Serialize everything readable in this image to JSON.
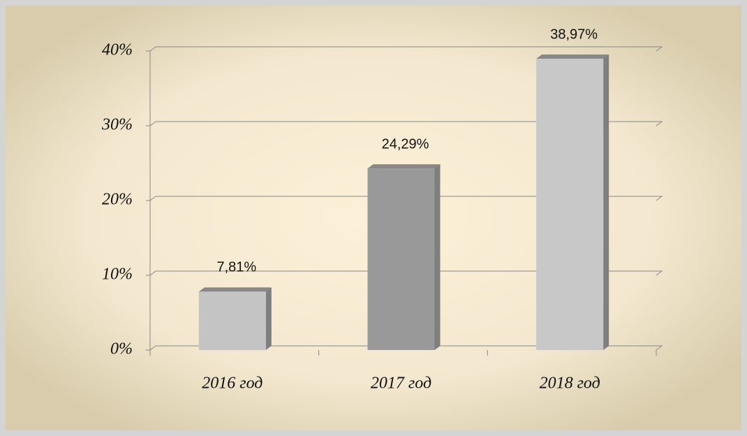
{
  "chart_data": {
    "type": "bar",
    "categories": [
      "2016 год",
      "2017 год",
      "2018 год"
    ],
    "values": [
      7.81,
      24.29,
      38.97
    ],
    "value_labels": [
      "7,81%",
      "24,29%",
      "38,97%"
    ],
    "colors": [
      "#c4c4c4",
      "#999999",
      "#c8c8c8"
    ],
    "ylim": [
      0,
      40
    ],
    "yticks": [
      {
        "value": 0,
        "label": "0%"
      },
      {
        "value": 10,
        "label": "10%"
      },
      {
        "value": 20,
        "label": "20%"
      },
      {
        "value": 30,
        "label": "30%"
      },
      {
        "value": 40,
        "label": "40%"
      }
    ],
    "grid": true
  }
}
